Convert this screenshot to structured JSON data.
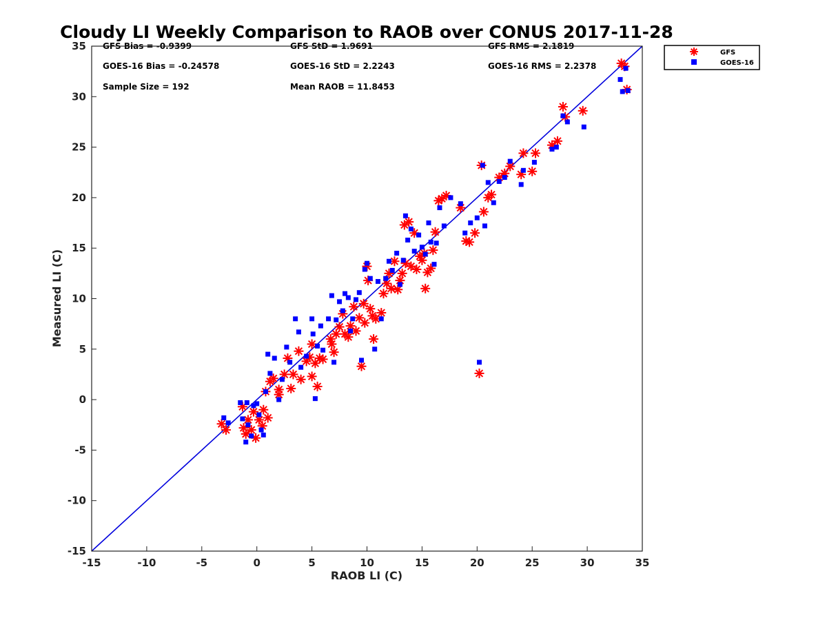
{
  "chart_data": {
    "type": "scatter",
    "title": "Cloudy LI Weekly Comparison to RAOB over CONUS 2017-11-28",
    "xlabel": "RAOB LI (C)",
    "ylabel": "Measured LI (C)",
    "xlim": [
      -15,
      35
    ],
    "ylim": [
      -15,
      35
    ],
    "xticks": [
      "-15",
      "-10",
      "-5",
      "0",
      "5",
      "10",
      "15",
      "20",
      "25",
      "30",
      "35"
    ],
    "yticks": [
      "-15",
      "-10",
      "-5",
      "0",
      "5",
      "10",
      "15",
      "20",
      "25",
      "30",
      "35"
    ],
    "grid": false,
    "legend_position": "outside-top-right",
    "reference_line": {
      "x": [
        -15,
        35
      ],
      "y": [
        -15,
        35
      ],
      "color": "#0000dd"
    },
    "stats": [
      "GFS Bias = -0.9399",
      "GFS StD = 1.9691",
      "GFS RMS = 2.1819",
      "GOES-16 Bias = -0.24578",
      "GOES-16 StD = 2.2243",
      "GOES-16 RMS = 2.2378",
      "Sample Size = 192",
      "Mean RAOB = 11.8453"
    ],
    "series": [
      {
        "name": "GFS",
        "marker": "asterisk",
        "color": "#ff0000",
        "points": [
          [
            -3.2,
            -2.4
          ],
          [
            -2.8,
            -3.0
          ],
          [
            -1.3,
            -0.7
          ],
          [
            -1.2,
            -2.8
          ],
          [
            -1.0,
            -3.4
          ],
          [
            -0.8,
            -2.0
          ],
          [
            -0.5,
            -3.0
          ],
          [
            -0.3,
            -1.2
          ],
          [
            -0.1,
            -3.8
          ],
          [
            0.2,
            -2.0
          ],
          [
            0.5,
            -2.6
          ],
          [
            0.6,
            -1.0
          ],
          [
            0.8,
            0.8
          ],
          [
            1.0,
            -1.8
          ],
          [
            1.2,
            1.8
          ],
          [
            1.5,
            2.1
          ],
          [
            2.0,
            0.5
          ],
          [
            2.0,
            1.0
          ],
          [
            2.5,
            2.5
          ],
          [
            2.8,
            4.1
          ],
          [
            3.1,
            1.1
          ],
          [
            3.3,
            2.5
          ],
          [
            3.8,
            4.8
          ],
          [
            4.0,
            2.0
          ],
          [
            4.5,
            3.8
          ],
          [
            4.8,
            4.2
          ],
          [
            5.0,
            5.5
          ],
          [
            5.0,
            2.3
          ],
          [
            5.3,
            3.6
          ],
          [
            5.5,
            1.3
          ],
          [
            5.7,
            4.1
          ],
          [
            6.0,
            4.0
          ],
          [
            6.7,
            6.0
          ],
          [
            6.8,
            5.5
          ],
          [
            7.0,
            4.7
          ],
          [
            7.2,
            6.5
          ],
          [
            7.5,
            7.2
          ],
          [
            7.8,
            8.5
          ],
          [
            8.0,
            6.5
          ],
          [
            8.3,
            6.2
          ],
          [
            8.5,
            7.3
          ],
          [
            8.8,
            9.2
          ],
          [
            9.0,
            6.8
          ],
          [
            9.3,
            8.1
          ],
          [
            9.5,
            3.3
          ],
          [
            9.7,
            9.5
          ],
          [
            9.8,
            7.6
          ],
          [
            10.0,
            13.2
          ],
          [
            10.1,
            11.8
          ],
          [
            10.3,
            9.0
          ],
          [
            10.5,
            8.3
          ],
          [
            10.6,
            6.0
          ],
          [
            10.8,
            8.0
          ],
          [
            11.3,
            8.6
          ],
          [
            11.5,
            10.5
          ],
          [
            11.8,
            11.5
          ],
          [
            12.0,
            12.5
          ],
          [
            12.2,
            11.0
          ],
          [
            12.5,
            13.7
          ],
          [
            12.8,
            10.9
          ],
          [
            13.0,
            11.8
          ],
          [
            13.2,
            12.5
          ],
          [
            13.4,
            17.3
          ],
          [
            13.5,
            13.5
          ],
          [
            13.8,
            17.6
          ],
          [
            14.0,
            13.2
          ],
          [
            14.3,
            16.5
          ],
          [
            14.5,
            12.9
          ],
          [
            14.8,
            14.2
          ],
          [
            15.0,
            13.8
          ],
          [
            15.2,
            14.5
          ],
          [
            15.3,
            11.0
          ],
          [
            15.5,
            12.6
          ],
          [
            15.8,
            13.0
          ],
          [
            16.0,
            14.8
          ],
          [
            16.2,
            16.6
          ],
          [
            16.5,
            19.7
          ],
          [
            16.8,
            19.9
          ],
          [
            17.2,
            20.2
          ],
          [
            18.5,
            19.0
          ],
          [
            19.0,
            15.7
          ],
          [
            19.3,
            15.6
          ],
          [
            19.8,
            16.5
          ],
          [
            20.2,
            2.6
          ],
          [
            20.4,
            23.2
          ],
          [
            20.6,
            18.6
          ],
          [
            21.0,
            20.0
          ],
          [
            21.3,
            20.3
          ],
          [
            22.0,
            22.0
          ],
          [
            22.5,
            22.4
          ],
          [
            23.0,
            23.1
          ],
          [
            24.0,
            22.3
          ],
          [
            24.2,
            24.4
          ],
          [
            25.0,
            22.6
          ],
          [
            25.3,
            24.4
          ],
          [
            26.8,
            25.2
          ],
          [
            27.3,
            25.6
          ],
          [
            27.8,
            29.0
          ],
          [
            28.0,
            28.0
          ],
          [
            29.6,
            28.6
          ],
          [
            33.1,
            33.3
          ],
          [
            33.4,
            33.0
          ],
          [
            33.6,
            30.7
          ]
        ]
      },
      {
        "name": "GOES-16",
        "marker": "square",
        "color": "#0000ff",
        "points": [
          [
            -3.0,
            -1.8
          ],
          [
            -2.6,
            -2.3
          ],
          [
            -1.5,
            -0.3
          ],
          [
            -1.3,
            -1.9
          ],
          [
            -1.0,
            -4.2
          ],
          [
            -0.9,
            -0.3
          ],
          [
            -0.8,
            -2.5
          ],
          [
            -0.5,
            -3.6
          ],
          [
            -0.3,
            -0.6
          ],
          [
            0.0,
            -0.4
          ],
          [
            0.2,
            -1.5
          ],
          [
            0.4,
            -3.0
          ],
          [
            0.6,
            -3.5
          ],
          [
            0.8,
            0.8
          ],
          [
            1.0,
            4.5
          ],
          [
            1.2,
            2.6
          ],
          [
            1.6,
            4.1
          ],
          [
            2.0,
            0.0
          ],
          [
            2.3,
            2.0
          ],
          [
            2.7,
            5.2
          ],
          [
            3.0,
            3.7
          ],
          [
            3.5,
            8.0
          ],
          [
            3.8,
            6.7
          ],
          [
            4.0,
            3.2
          ],
          [
            4.5,
            4.3
          ],
          [
            5.0,
            8.0
          ],
          [
            5.1,
            6.5
          ],
          [
            5.3,
            0.1
          ],
          [
            5.5,
            5.3
          ],
          [
            5.8,
            7.3
          ],
          [
            6.0,
            4.9
          ],
          [
            6.5,
            8.0
          ],
          [
            6.8,
            10.3
          ],
          [
            7.0,
            3.7
          ],
          [
            7.2,
            7.9
          ],
          [
            7.5,
            9.7
          ],
          [
            7.8,
            8.8
          ],
          [
            8.0,
            10.5
          ],
          [
            8.3,
            10.1
          ],
          [
            8.5,
            6.8
          ],
          [
            8.7,
            8.0
          ],
          [
            9.0,
            9.9
          ],
          [
            9.3,
            10.6
          ],
          [
            9.5,
            3.9
          ],
          [
            9.8,
            12.9
          ],
          [
            10.0,
            13.5
          ],
          [
            10.3,
            12.0
          ],
          [
            10.7,
            5.0
          ],
          [
            11.0,
            11.7
          ],
          [
            11.3,
            8.0
          ],
          [
            11.7,
            12.0
          ],
          [
            12.0,
            13.7
          ],
          [
            12.3,
            12.8
          ],
          [
            12.7,
            14.5
          ],
          [
            13.0,
            11.4
          ],
          [
            13.3,
            13.8
          ],
          [
            13.5,
            18.2
          ],
          [
            13.7,
            15.8
          ],
          [
            14.0,
            16.9
          ],
          [
            14.3,
            14.7
          ],
          [
            14.7,
            16.3
          ],
          [
            15.0,
            15.1
          ],
          [
            15.3,
            14.4
          ],
          [
            15.6,
            17.5
          ],
          [
            15.8,
            15.6
          ],
          [
            16.1,
            13.4
          ],
          [
            16.3,
            15.5
          ],
          [
            16.6,
            19.0
          ],
          [
            17.0,
            17.2
          ],
          [
            17.6,
            20.0
          ],
          [
            18.5,
            19.4
          ],
          [
            18.9,
            16.5
          ],
          [
            19.4,
            17.5
          ],
          [
            20.0,
            18.0
          ],
          [
            20.2,
            3.7
          ],
          [
            20.5,
            23.2
          ],
          [
            20.7,
            17.2
          ],
          [
            21.0,
            21.5
          ],
          [
            21.5,
            19.5
          ],
          [
            22.0,
            21.6
          ],
          [
            22.5,
            22.0
          ],
          [
            23.0,
            23.6
          ],
          [
            24.0,
            21.3
          ],
          [
            24.2,
            22.7
          ],
          [
            25.2,
            23.5
          ],
          [
            26.8,
            24.8
          ],
          [
            27.2,
            25.0
          ],
          [
            27.8,
            28.1
          ],
          [
            28.2,
            27.5
          ],
          [
            29.7,
            27.0
          ],
          [
            33.0,
            31.7
          ],
          [
            33.2,
            30.5
          ],
          [
            33.5,
            32.8
          ],
          [
            33.7,
            30.6
          ]
        ]
      }
    ]
  }
}
